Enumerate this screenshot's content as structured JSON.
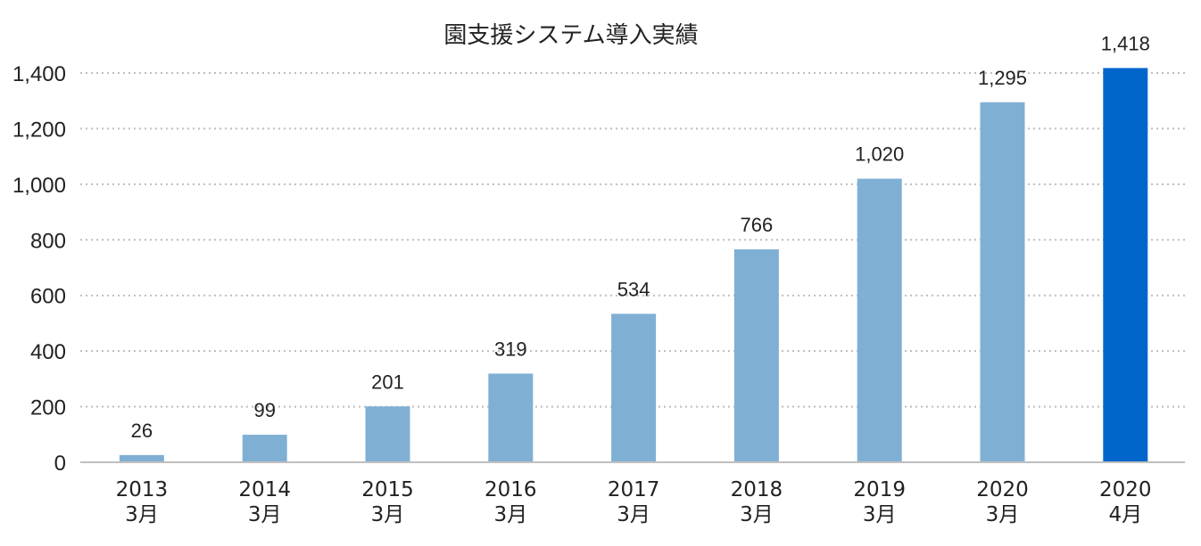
{
  "chart_data": {
    "type": "bar",
    "title": "園支援システム導入実績",
    "xlabel": "",
    "ylabel": "",
    "categories": [
      [
        "2013",
        "3月"
      ],
      [
        "2014",
        "3月"
      ],
      [
        "2015",
        "3月"
      ],
      [
        "2016",
        "3月"
      ],
      [
        "2017",
        "3月"
      ],
      [
        "2018",
        "3月"
      ],
      [
        "2019",
        "3月"
      ],
      [
        "2020",
        "3月"
      ],
      [
        "2020",
        "4月"
      ]
    ],
    "values": [
      26,
      99,
      201,
      319,
      534,
      766,
      1020,
      1295,
      1418
    ],
    "data_labels": [
      "26",
      "99",
      "201",
      "319",
      "534",
      "766",
      "1,020",
      "1,295",
      "1,418"
    ],
    "ylim": [
      0,
      1400
    ],
    "yticks": [
      0,
      200,
      400,
      600,
      800,
      1000,
      1200,
      1400
    ],
    "ytick_labels": [
      "0",
      "200",
      "400",
      "600",
      "800",
      "1,000",
      "1,200",
      "1,400"
    ],
    "grid": true,
    "legend": "none",
    "colors": {
      "bar": "#7fb0d3",
      "highlight": "#0066cc"
    },
    "highlight_index": 8
  }
}
